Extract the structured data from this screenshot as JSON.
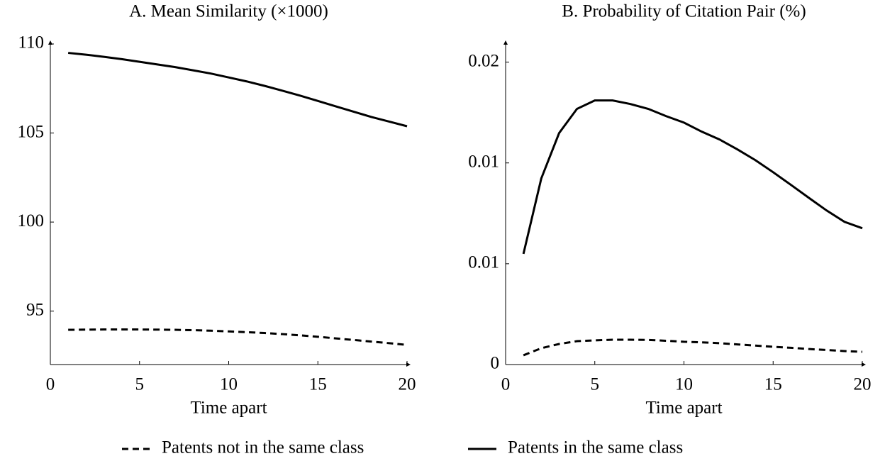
{
  "chart_data": [
    {
      "type": "line",
      "title": "A. Mean Similarity (×1000)",
      "xlabel": "Time apart",
      "x": [
        1,
        2,
        3,
        4,
        5,
        6,
        7,
        8,
        9,
        10,
        11,
        12,
        13,
        14,
        15,
        16,
        17,
        18,
        19,
        20
      ],
      "series": [
        {
          "name": "Patents not in the same class",
          "color": "#000000",
          "line_style": "dashed",
          "values": [
            93.95,
            93.96,
            93.97,
            93.97,
            93.97,
            93.96,
            93.95,
            93.93,
            93.9,
            93.86,
            93.82,
            93.77,
            93.71,
            93.64,
            93.56,
            93.47,
            93.38,
            93.29,
            93.2,
            93.1
          ]
        },
        {
          "name": "Patents in the same class",
          "color": "#000000",
          "line_style": "solid",
          "values": [
            109.5,
            109.4,
            109.28,
            109.15,
            109.0,
            108.85,
            108.7,
            108.52,
            108.34,
            108.12,
            107.9,
            107.65,
            107.38,
            107.1,
            106.8,
            106.5,
            106.2,
            105.9,
            105.64,
            105.38
          ]
        }
      ],
      "xlim": [
        0,
        20
      ],
      "xticks": [
        0,
        5,
        10,
        15,
        20
      ],
      "ylim": [
        92,
        110
      ],
      "yticks": [
        95,
        100,
        105,
        110
      ]
    },
    {
      "type": "line",
      "title": "B. Probability of Citation Pair (%)",
      "xlabel": "Time apart",
      "x": [
        1,
        2,
        3,
        4,
        5,
        6,
        7,
        8,
        9,
        10,
        11,
        12,
        13,
        14,
        15,
        16,
        17,
        18,
        19,
        20
      ],
      "series": [
        {
          "color": "#000000",
          "line_style": "dashed",
          "values": [
            0.00046,
            0.00081,
            0.00102,
            0.00116,
            0.0012,
            0.00123,
            0.00123,
            0.00122,
            0.00118,
            0.00113,
            0.0011,
            0.00106,
            0.001,
            0.00094,
            0.00088,
            0.00083,
            0.00077,
            0.00072,
            0.00067,
            0.00063
          ]
        },
        {
          "color": "#000000",
          "line_style": "solid",
          "values": [
            0.00549,
            0.00923,
            0.01148,
            0.01268,
            0.0131,
            0.0131,
            0.01292,
            0.01268,
            0.01232,
            0.012,
            0.01155,
            0.01116,
            0.01067,
            0.01014,
            0.00954,
            0.00891,
            0.00827,
            0.00764,
            0.00708,
            0.00676
          ]
        }
      ],
      "xlim": [
        0,
        20
      ],
      "xticks": [
        0,
        5,
        10,
        15,
        20
      ],
      "ylim": [
        0,
        0.0159
      ],
      "yticks": [
        0,
        {
          "value": 0.005,
          "label": "0.01"
        },
        0.01,
        {
          "value": 0.015,
          "label": "0.02"
        }
      ]
    }
  ]
}
